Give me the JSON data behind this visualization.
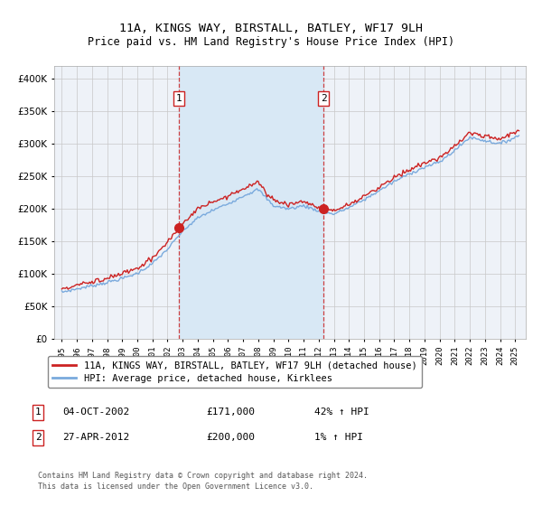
{
  "title": "11A, KINGS WAY, BIRSTALL, BATLEY, WF17 9LH",
  "subtitle": "Price paid vs. HM Land Registry's House Price Index (HPI)",
  "legend_line1": "11A, KINGS WAY, BIRSTALL, BATLEY, WF17 9LH (detached house)",
  "legend_line2": "HPI: Average price, detached house, Kirklees",
  "annotation1_label": "1",
  "annotation1_date": "04-OCT-2002",
  "annotation1_price": "£171,000",
  "annotation1_hpi": "42% ↑ HPI",
  "annotation2_label": "2",
  "annotation2_date": "27-APR-2012",
  "annotation2_price": "£200,000",
  "annotation2_hpi": "1% ↑ HPI",
  "footnote1": "Contains HM Land Registry data © Crown copyright and database right 2024.",
  "footnote2": "This data is licensed under the Open Government Licence v3.0.",
  "sale1_date_num": 2002.75,
  "sale1_price": 171000,
  "sale2_date_num": 2012.33,
  "sale2_price": 200000,
  "hpi_color": "#7aaadd",
  "price_color": "#cc2222",
  "background_color": "#ffffff",
  "plot_bg_color": "#eef2f8",
  "shade_color": "#d8e8f5",
  "grid_color": "#c8c8c8",
  "ylim": [
    0,
    420000
  ],
  "xlim_start": 1994.5,
  "xlim_end": 2025.7
}
